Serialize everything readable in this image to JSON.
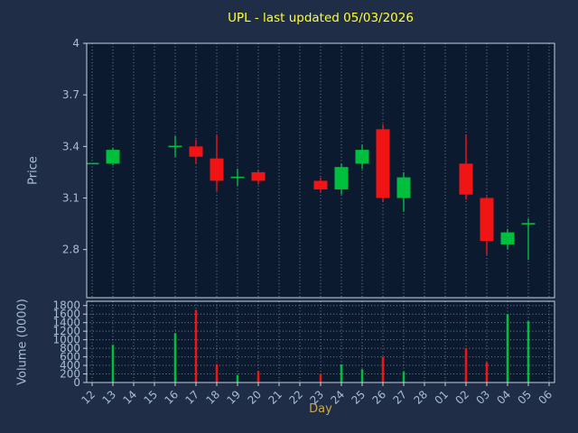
{
  "colors": {
    "figure_bg": "#1f2e46",
    "axes_bg": "#0c1a2f",
    "grid": "#8fa6bd",
    "spine": "#c6d2de",
    "tick_label": "#a8bdd4",
    "title": "#ffff33",
    "xlabel_color": "#c9a750",
    "up": "#00bf3f",
    "down": "#f01414"
  },
  "chart_data": {
    "type": "candlestick+volume",
    "title": "UPL - last updated 05/03/2026",
    "xlabel": "Day",
    "price_ylabel": "Price",
    "volume_ylabel": "Volume (0000)",
    "grid": "dotted",
    "legend": "none",
    "categories": [
      "12",
      "13",
      "14",
      "15",
      "16",
      "17",
      "18",
      "19",
      "20",
      "21",
      "22",
      "23",
      "24",
      "25",
      "26",
      "27",
      "28",
      "01",
      "02",
      "03",
      "04",
      "05",
      "06"
    ],
    "price_ticks": [
      4,
      3.7,
      3.4,
      3.1,
      2.8
    ],
    "price_tick_labels": [
      "4",
      "3.7",
      "3.4",
      "3.1",
      "2.8"
    ],
    "price_ylim": [
      2.52,
      4.0
    ],
    "volume_ticks": [
      0,
      200,
      400,
      600,
      800,
      1000,
      1200,
      1400,
      1600,
      1800
    ],
    "volume_ylim": [
      0,
      1900
    ],
    "candles": [
      {
        "day": "12",
        "open": 3.3,
        "high": 3.3,
        "low": 3.3,
        "close": 3.3,
        "volume": 0
      },
      {
        "day": "13",
        "open": 3.3,
        "high": 3.39,
        "low": 3.29,
        "close": 3.38,
        "volume": 880
      },
      {
        "day": "16",
        "open": 3.4,
        "high": 3.46,
        "low": 3.34,
        "close": 3.4,
        "volume": 1150
      },
      {
        "day": "17",
        "open": 3.4,
        "high": 3.44,
        "low": 3.3,
        "close": 3.34,
        "volume": 1700
      },
      {
        "day": "18",
        "open": 3.33,
        "high": 3.47,
        "low": 3.14,
        "close": 3.2,
        "volume": 430
      },
      {
        "day": "19",
        "open": 3.22,
        "high": 3.27,
        "low": 3.17,
        "close": 3.22,
        "volume": 170
      },
      {
        "day": "20",
        "open": 3.25,
        "high": 3.26,
        "low": 3.18,
        "close": 3.2,
        "volume": 270
      },
      {
        "day": "23",
        "open": 3.2,
        "high": 3.22,
        "low": 3.13,
        "close": 3.15,
        "volume": 200
      },
      {
        "day": "24",
        "open": 3.15,
        "high": 3.3,
        "low": 3.12,
        "close": 3.28,
        "volume": 420
      },
      {
        "day": "25",
        "open": 3.3,
        "high": 3.41,
        "low": 3.27,
        "close": 3.38,
        "volume": 310
      },
      {
        "day": "26",
        "open": 3.5,
        "high": 3.53,
        "low": 3.08,
        "close": 3.1,
        "volume": 600
      },
      {
        "day": "27",
        "open": 3.1,
        "high": 3.25,
        "low": 3.02,
        "close": 3.22,
        "volume": 250
      },
      {
        "day": "02",
        "open": 3.3,
        "high": 3.47,
        "low": 3.09,
        "close": 3.12,
        "volume": 800
      },
      {
        "day": "03",
        "open": 3.1,
        "high": 3.11,
        "low": 2.77,
        "close": 2.85,
        "volume": 470
      },
      {
        "day": "04",
        "open": 2.83,
        "high": 2.92,
        "low": 2.8,
        "close": 2.9,
        "volume": 1600
      },
      {
        "day": "05",
        "open": 2.95,
        "high": 2.98,
        "low": 2.74,
        "close": 2.95,
        "volume": 1430
      }
    ]
  }
}
